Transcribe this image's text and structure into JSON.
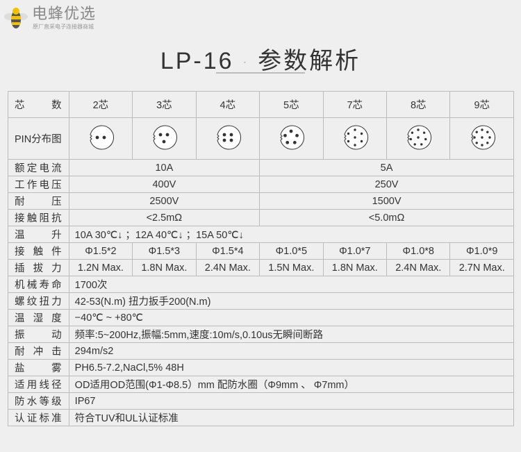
{
  "logo": {
    "name": "电蜂优选",
    "slogan": "原厂直采电子连接器商城"
  },
  "title": {
    "model": "LP-16",
    "separator": "·",
    "text": "参数解析"
  },
  "table": {
    "header_label": "芯　数",
    "cores": [
      "2芯",
      "3芯",
      "4芯",
      "5芯",
      "7芯",
      "8芯",
      "9芯"
    ],
    "pins": [
      2,
      3,
      4,
      5,
      7,
      8,
      9
    ],
    "pin_label": "PIN分布图",
    "grouped_rows": [
      {
        "label": "额定电流",
        "left": "10A",
        "right": "5A"
      },
      {
        "label": "工作电压",
        "left": "400V",
        "right": "250V"
      },
      {
        "label": "耐　压",
        "left": "2500V",
        "right": "1500V"
      },
      {
        "label": "接触阻抗",
        "left": "<2.5mΩ",
        "right": "<5.0mΩ"
      }
    ],
    "temp_rise": {
      "label": "温　升",
      "value": "10A  30℃↓ ；12A  40℃↓ ；15A  50℃↓"
    },
    "contacts": {
      "label": "接 触 件",
      "values": [
        "Φ1.5*2",
        "Φ1.5*3",
        "Φ1.5*4",
        "Φ1.0*5",
        "Φ1.0*7",
        "Φ1.0*8",
        "Φ1.0*9"
      ]
    },
    "force": {
      "label": "插 拔 力",
      "values": [
        "1.2N Max.",
        "1.8N Max.",
        "2.4N Max.",
        "1.5N Max.",
        "1.8N Max.",
        "2.4N Max.",
        "2.7N Max."
      ]
    },
    "rows": [
      {
        "label": "机械寿命",
        "value": "1700次"
      },
      {
        "label": "螺纹扭力",
        "value": "42-53(N.m)   扭力扳手200(N.m)"
      },
      {
        "label": "温 湿 度",
        "value": "−40℃ ~ +80℃"
      },
      {
        "label": "振　动",
        "value": "频率:5~200Hz,振幅:5mm,速度:10m/s,0.10us无瞬间断路"
      },
      {
        "label": "耐 冲 击",
        "value": "294m/s2"
      },
      {
        "label": "盐　雾",
        "value": "PH6.5-7.2,NaCl,5% 48H"
      },
      {
        "label": "适用线径",
        "value": "OD适用OD范围(Φ1-Φ8.5）mm   配防水圈（Φ9mm  、 Φ7mm）"
      },
      {
        "label": "防水等级",
        "value": "IP67"
      },
      {
        "label": "认证标准",
        "value": "符合TUV和UL认证标准"
      }
    ]
  }
}
